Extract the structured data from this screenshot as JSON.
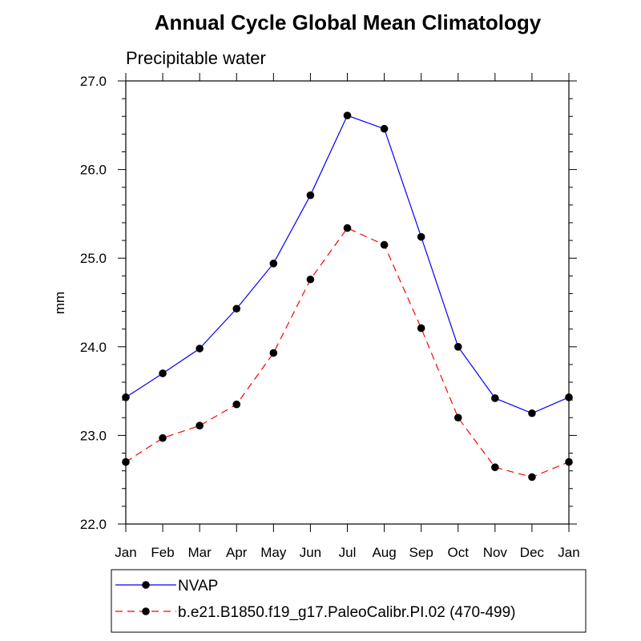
{
  "chart_data": {
    "type": "line",
    "title": "Annual Cycle Global Mean Climatology",
    "subtitle": "Precipitable water",
    "xlabel": "",
    "ylabel": "mm",
    "categories": [
      "Jan",
      "Feb",
      "Mar",
      "Apr",
      "May",
      "Jun",
      "Jul",
      "Aug",
      "Sep",
      "Oct",
      "Nov",
      "Dec",
      "Jan"
    ],
    "ylim": [
      22.0,
      27.0
    ],
    "yticks": [
      "22.0",
      "23.0",
      "24.0",
      "25.0",
      "26.0",
      "27.0"
    ],
    "grid": false,
    "legend_position": "bottom",
    "series": [
      {
        "name": "NVAP",
        "color": "#0000ff",
        "dash": "solid",
        "marker": "filled-circle",
        "values": [
          23.43,
          23.7,
          23.98,
          24.43,
          24.94,
          25.71,
          26.61,
          26.46,
          25.24,
          24.0,
          23.42,
          23.25,
          23.43
        ]
      },
      {
        "name": "b.e21.B1850.f19_g17.PaleoCalibr.PI.02 (470-499)",
        "color": "#ff0000",
        "dash": "dashed",
        "marker": "filled-circle",
        "values": [
          22.7,
          22.97,
          23.11,
          23.35,
          23.93,
          24.76,
          25.34,
          25.15,
          24.21,
          23.2,
          22.64,
          22.53,
          22.7
        ]
      }
    ]
  }
}
